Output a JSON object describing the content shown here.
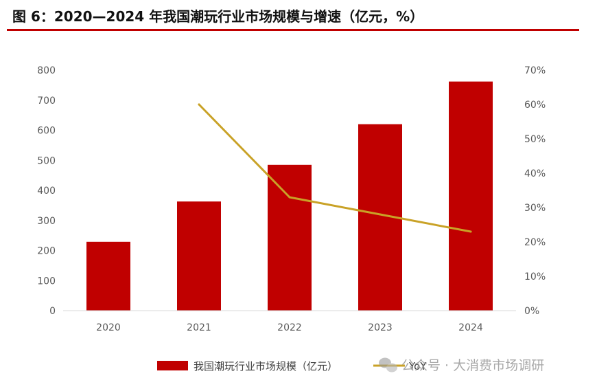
{
  "header": {
    "title": "图 6：2020—2024 年我国潮玩行业市场规模与增速（亿元，%）"
  },
  "chart_data": {
    "type": "bar",
    "title": "图 6：2020—2024 年我国潮玩行业市场规模与增速（亿元，%）",
    "categories": [
      "2020",
      "2021",
      "2022",
      "2023",
      "2024"
    ],
    "series": [
      {
        "name": "我国潮玩行业市场规模（亿元）",
        "type": "bar",
        "axis": "left",
        "values": [
          229,
          363,
          485,
          620,
          762
        ],
        "color": "#c00000"
      },
      {
        "name": "YoY",
        "type": "line",
        "axis": "right",
        "values": [
          null,
          0.6,
          0.33,
          0.28,
          0.23
        ],
        "color": "#c9a227"
      }
    ],
    "y_left": {
      "ylim": [
        0,
        800
      ],
      "ticks": [
        "0",
        "100",
        "200",
        "300",
        "400",
        "500",
        "600",
        "700",
        "800"
      ]
    },
    "y_right": {
      "ylim": [
        0,
        0.7
      ],
      "ticks": [
        "0%",
        "10%",
        "20%",
        "30%",
        "40%",
        "50%",
        "60%",
        "70%"
      ]
    },
    "grid": false,
    "legend": "bottom"
  },
  "watermark": {
    "text": "公众号 · 大消费市场调研"
  }
}
